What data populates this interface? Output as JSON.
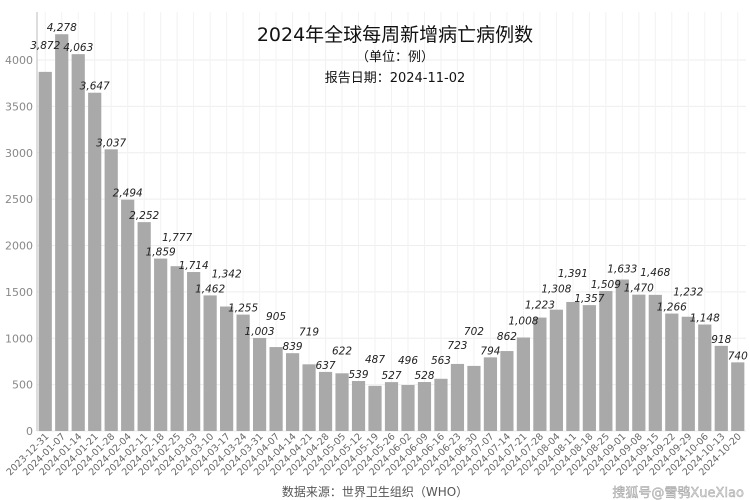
{
  "chart_data": {
    "type": "bar",
    "title": "2024年全球每周新增病亡病例数",
    "subtitle": "（单位：例）",
    "report_date": "报告日期：2024-11-02",
    "source": "数据来源：世界卫生组织（WHO）",
    "watermark": "搜狐号@雪鸮XueXiao",
    "bar_color": "#a9a9a9",
    "grid": true,
    "ylim": [
      0,
      4000
    ],
    "yticks": [
      0,
      500,
      1000,
      1500,
      2000,
      2500,
      3000,
      3500,
      4000
    ],
    "categories": [
      "2023-12-31",
      "2024-01-07",
      "2024-01-14",
      "2024-01-21",
      "2024-01-28",
      "2024-02-04",
      "2024-02-11",
      "2024-02-18",
      "2024-02-25",
      "2024-03-03",
      "2024-03-10",
      "2024-03-17",
      "2024-03-24",
      "2024-03-31",
      "2024-04-07",
      "2024-04-14",
      "2024-04-21",
      "2024-04-28",
      "2024-05-05",
      "2024-05-12",
      "2024-05-19",
      "2024-05-26",
      "2024-06-02",
      "2024-06-09",
      "2024-06-16",
      "2024-06-23",
      "2024-06-30",
      "2024-07-07",
      "2024-07-14",
      "2024-07-21",
      "2024-07-28",
      "2024-08-04",
      "2024-08-11",
      "2024-08-18",
      "2024-08-25",
      "2024-09-01",
      "2024-09-08",
      "2024-09-15",
      "2024-09-22",
      "2024-09-29",
      "2024-10-06",
      "2024-10-13",
      "2024-10-20"
    ],
    "values": [
      3872,
      4278,
      4063,
      3647,
      3037,
      2494,
      2252,
      1859,
      1777,
      1714,
      1462,
      1342,
      1255,
      1003,
      905,
      839,
      719,
      637,
      622,
      539,
      487,
      527,
      496,
      528,
      563,
      723,
      702,
      794,
      862,
      1008,
      1223,
      1308,
      1391,
      1357,
      1509,
      1633,
      1470,
      1468,
      1266,
      1232,
      1148,
      918,
      740
    ],
    "value_labels": [
      "3,872",
      "4,278",
      "4,063",
      "3,647",
      "3,037",
      "2,494",
      "2,252",
      "1,859",
      "1,777",
      "1,714",
      "1,462",
      "1,342",
      "1,255",
      "1,003",
      "905",
      "839",
      "719",
      "637",
      "622",
      "539",
      "487",
      "527",
      "496",
      "528",
      "563",
      "723",
      "702",
      "794",
      "862",
      "1,008",
      "1,223",
      "1,308",
      "1,391",
      "1,357",
      "1,509",
      "1,633",
      "1,470",
      "1,468",
      "1,266",
      "1,232",
      "1,148",
      "918",
      "740"
    ]
  }
}
